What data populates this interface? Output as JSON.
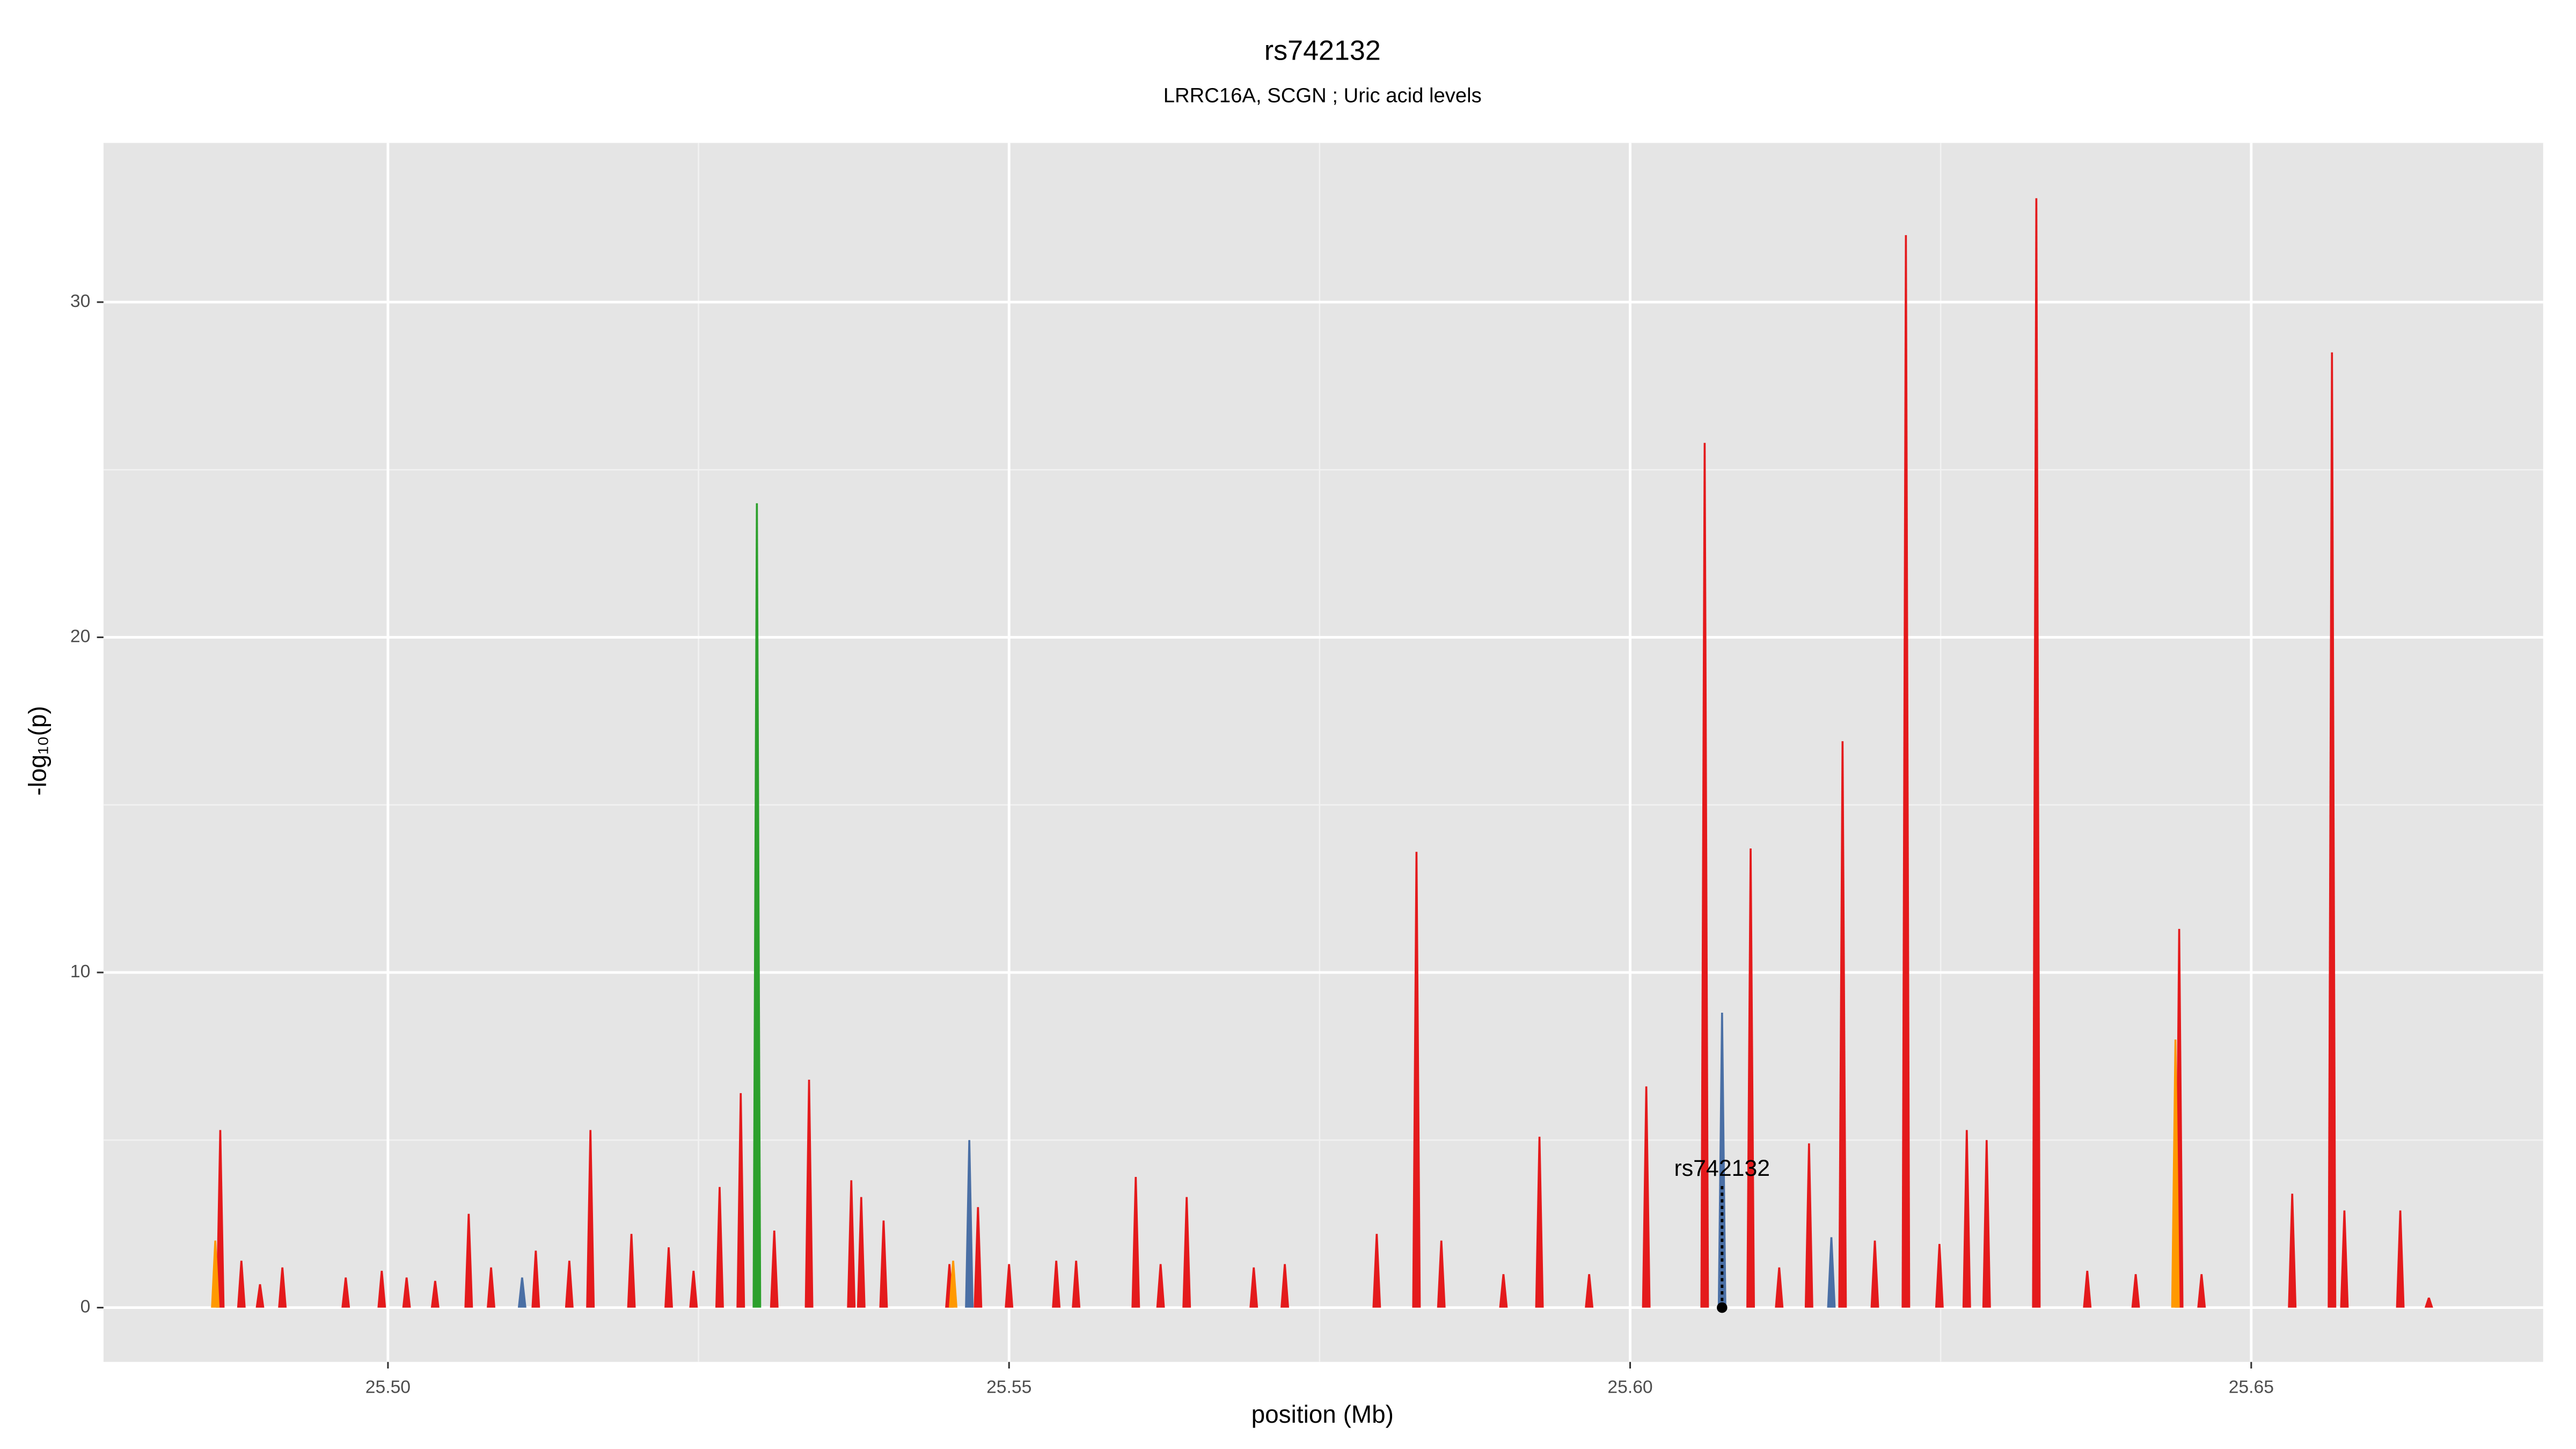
{
  "chart_data": {
    "type": "spike",
    "title": "rs742132",
    "subtitle": "LRRC16A, SCGN ; Uric acid levels",
    "xlabel": "position (Mb)",
    "ylabel": "-log₁₀(p)",
    "xlim": [
      25.4771,
      25.6735
    ],
    "ylim": [
      -1.62,
      34.75
    ],
    "xticks": [
      {
        "value": 25.5,
        "label": "25.50"
      },
      {
        "value": 25.55,
        "label": "25.55"
      },
      {
        "value": 25.6,
        "label": "25.60"
      },
      {
        "value": 25.65,
        "label": "25.65"
      }
    ],
    "xminor": [
      25.525,
      25.575,
      25.625
    ],
    "yticks": [
      0,
      10,
      20,
      30
    ],
    "yminor": [
      5,
      15,
      25
    ],
    "grid": true,
    "series": [
      {
        "color": "#e41a1c",
        "x": [
          25.4865,
          25.4882,
          25.4897,
          25.4915,
          25.4966,
          25.4995,
          25.5015,
          25.5038,
          25.5065,
          25.5083,
          25.5119,
          25.5146,
          25.5163,
          25.5196,
          25.5226,
          25.5246,
          25.5267,
          25.5284,
          25.5311,
          25.5339,
          25.5373,
          25.5381,
          25.5399,
          25.5452,
          25.5475,
          25.55,
          25.5538,
          25.5554,
          25.5602,
          25.5622,
          25.5643,
          25.5697,
          25.5722,
          25.5796,
          25.5828,
          25.5848,
          25.5898,
          25.5927,
          25.5967,
          25.6013,
          25.606,
          25.6097,
          25.612,
          25.6144,
          25.6171,
          25.6197,
          25.6222,
          25.6249,
          25.6271,
          25.6287,
          25.6327,
          25.6368,
          25.6407,
          25.6442,
          25.646,
          25.6533,
          25.6565,
          25.6575,
          25.662,
          25.6643
        ],
        "values": [
          5.3,
          1.4,
          0.7,
          1.2,
          0.9,
          1.1,
          0.9,
          0.8,
          2.8,
          1.2,
          1.7,
          1.4,
          5.3,
          2.2,
          1.8,
          1.1,
          3.6,
          6.4,
          2.3,
          6.8,
          3.8,
          3.3,
          2.6,
          1.3,
          3.0,
          1.3,
          1.4,
          1.4,
          3.9,
          1.3,
          3.3,
          1.2,
          1.3,
          2.2,
          13.6,
          2.0,
          1.0,
          5.1,
          1.0,
          6.6,
          25.8,
          13.7,
          1.2,
          4.9,
          16.9,
          2.0,
          32.0,
          1.9,
          5.3,
          5.0,
          33.1,
          1.1,
          1.0,
          11.3,
          1.0,
          3.4,
          28.5,
          2.9,
          2.9,
          0.3
        ]
      },
      {
        "color": "#ff9900",
        "x": [
          25.4861,
          25.5455,
          25.6439
        ],
        "values": [
          2.0,
          1.4,
          8.0
        ]
      },
      {
        "color": "#4a6fa5",
        "x": [
          25.5108,
          25.5468,
          25.6074,
          25.6162
        ],
        "values": [
          0.9,
          5.0,
          8.8,
          2.1
        ]
      },
      {
        "color": "#2ca02c",
        "x": [
          25.5297
        ],
        "values": [
          24.0
        ]
      }
    ],
    "lead_snp": {
      "label": "rs742132",
      "x": 25.6074,
      "y": 0
    }
  }
}
